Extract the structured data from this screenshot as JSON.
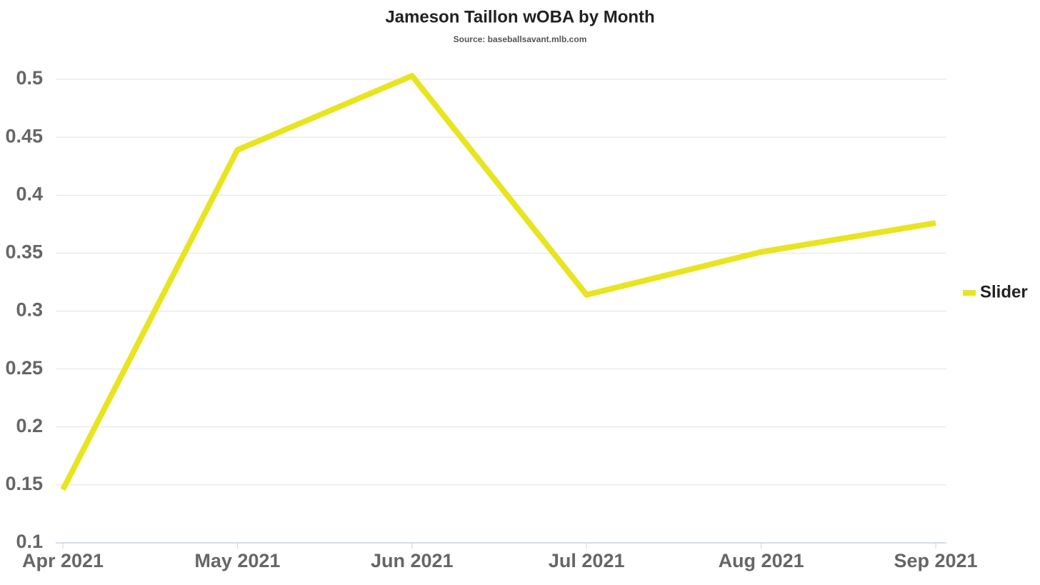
{
  "chart_data": {
    "type": "line",
    "title": "Jameson Taillon wOBA by Month",
    "subtitle": "Source: baseballsavant.mlb.com",
    "categories": [
      "Apr 2021",
      "May 2021",
      "Jun 2021",
      "Jul 2021",
      "Aug 2021",
      "Sep 2021"
    ],
    "series": [
      {
        "name": "Slider",
        "color": "#e8e41f",
        "values": [
          0.146,
          0.439,
          0.503,
          0.314,
          0.351,
          0.376
        ]
      }
    ],
    "ylim": [
      0.1,
      0.5
    ],
    "yticks": [
      0.1,
      0.15,
      0.2,
      0.25,
      0.3,
      0.35,
      0.4,
      0.45,
      0.5
    ],
    "grid": true,
    "legend": "right"
  }
}
